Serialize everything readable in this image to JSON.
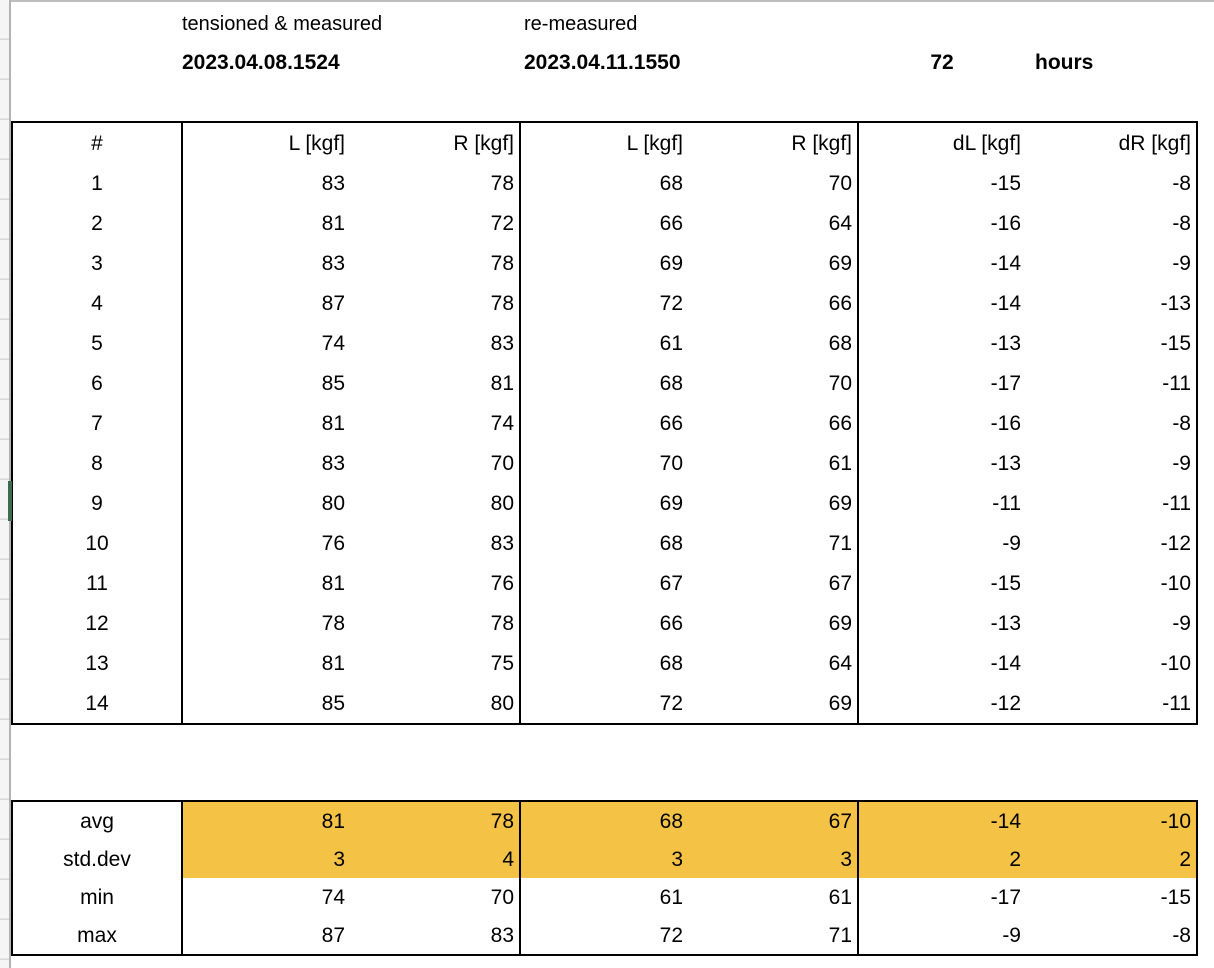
{
  "header": {
    "session1_label": "tensioned & measured",
    "session1_timestamp": "2023.04.08.1524",
    "session2_label": "re-measured",
    "session2_timestamp": "2023.04.11.1550",
    "elapsed_value": "72",
    "elapsed_unit": "hours"
  },
  "table": {
    "headers": [
      "#",
      "L [kgf]",
      "R [kgf]",
      "L [kgf]",
      "R [kgf]",
      "dL [kgf]",
      "dR [kgf]"
    ],
    "rows": [
      [
        1,
        83,
        78,
        68,
        70,
        -15,
        -8
      ],
      [
        2,
        81,
        72,
        66,
        64,
        -16,
        -8
      ],
      [
        3,
        83,
        78,
        69,
        69,
        -14,
        -9
      ],
      [
        4,
        87,
        78,
        72,
        66,
        -14,
        -13
      ],
      [
        5,
        74,
        83,
        61,
        68,
        -13,
        -15
      ],
      [
        6,
        85,
        81,
        68,
        70,
        -17,
        -11
      ],
      [
        7,
        81,
        74,
        66,
        66,
        -16,
        -8
      ],
      [
        8,
        83,
        70,
        70,
        61,
        -13,
        -9
      ],
      [
        9,
        80,
        80,
        69,
        69,
        -11,
        -11
      ],
      [
        10,
        76,
        83,
        68,
        71,
        -9,
        -12
      ],
      [
        11,
        81,
        76,
        67,
        67,
        -15,
        -10
      ],
      [
        12,
        78,
        78,
        66,
        69,
        -13,
        -9
      ],
      [
        13,
        81,
        75,
        68,
        64,
        -14,
        -10
      ],
      [
        14,
        85,
        80,
        72,
        69,
        -12,
        -11
      ]
    ]
  },
  "summary": {
    "rows": [
      {
        "label": "avg",
        "values": [
          81,
          78,
          68,
          67,
          -14,
          -10
        ],
        "highlight": true
      },
      {
        "label": "std.dev",
        "values": [
          3,
          4,
          3,
          3,
          2,
          2
        ],
        "highlight": true
      },
      {
        "label": "min",
        "values": [
          74,
          70,
          61,
          61,
          -17,
          -15
        ],
        "highlight": false
      },
      {
        "label": "max",
        "values": [
          87,
          83,
          72,
          71,
          -9,
          -8
        ],
        "highlight": false
      }
    ]
  },
  "colors": {
    "highlight_orange": "#f4c245",
    "selected_row_marker_green": "#3d6b4f"
  }
}
